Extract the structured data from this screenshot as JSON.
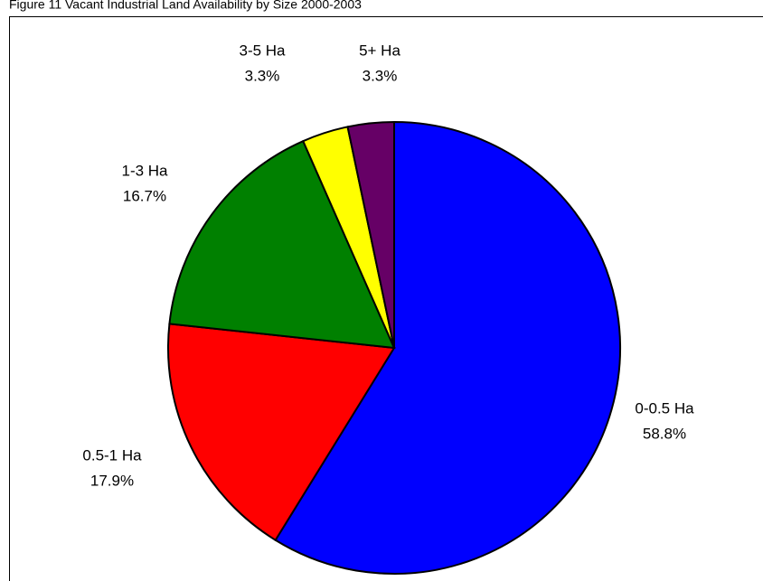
{
  "chart_data": {
    "type": "pie",
    "title": "Figure 11 Vacant Industrial Land Availability by Size 2000-2003",
    "categories": [
      "0-0.5 Ha",
      "0.5-1 Ha",
      "1-3 Ha",
      "3-5 Ha",
      "5+ Ha"
    ],
    "values": [
      58.8,
      17.9,
      16.7,
      3.3,
      3.3
    ],
    "value_labels": [
      "58.8%",
      "17.9%",
      "16.7%",
      "3.3%",
      "3.3%"
    ],
    "colors": [
      "#0000ff",
      "#ff0000",
      "#008000",
      "#ffff00",
      "#660066"
    ]
  }
}
